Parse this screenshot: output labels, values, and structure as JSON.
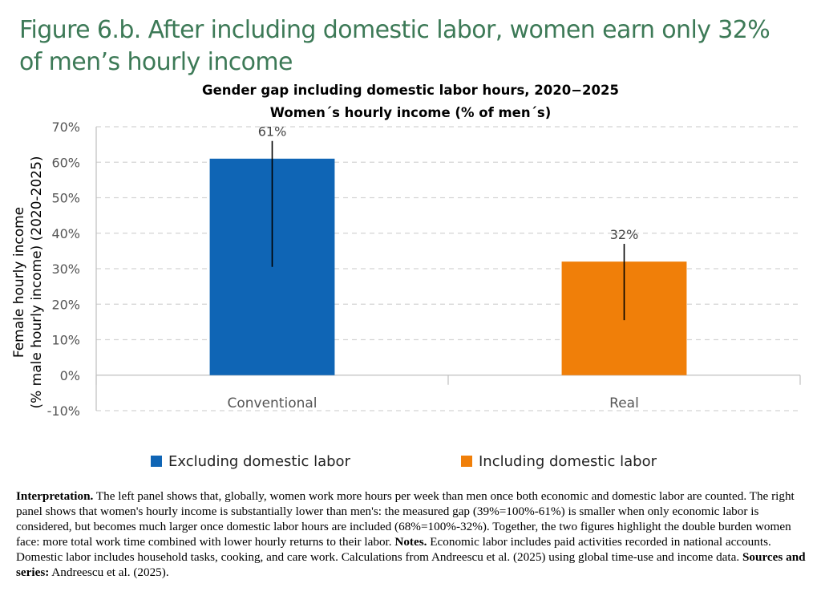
{
  "figure_title": "Figure 6.b. After including domestic labor, women earn only 32% of men’s hourly income",
  "chart_data": {
    "type": "bar",
    "title": "Gender gap including domestic labor hours, 2020−2025",
    "subtitle": "Women´s hourly income (% of men´s)",
    "ylabel_line1": "Female hourly income",
    "ylabel_line2": "(% male hourly income) (2020-2025)",
    "xlabel": "",
    "categories": [
      "Conventional",
      "Real"
    ],
    "series": [
      {
        "name": "Excluding domestic labor",
        "color": "#0f65b5",
        "values": [
          61,
          null
        ]
      },
      {
        "name": "Including domestic labor",
        "color": "#f07f09",
        "values": [
          null,
          32
        ]
      }
    ],
    "data_labels": [
      "61%",
      "32%"
    ],
    "error_bars": [
      {
        "category": "Conventional",
        "low": 30.5,
        "high": 66
      },
      {
        "category": "Real",
        "low": 15.5,
        "high": 37
      }
    ],
    "yticks": [
      70,
      60,
      50,
      40,
      30,
      20,
      10,
      0,
      -10
    ],
    "ytick_labels": [
      "70%",
      "60%",
      "50%",
      "40%",
      "30%",
      "20%",
      "10%",
      "0%",
      "-10%"
    ],
    "ylim": [
      -10,
      70
    ],
    "grid": true,
    "legend_position": "bottom"
  },
  "notes": {
    "interpretation_label": "Interpretation.",
    "interpretation_text": " The left panel shows that, globally, women work more hours per week than men once both economic and domestic labor are counted. The right panel shows that women's hourly income is substantially lower than men's: the measured gap (39%=100%-61%) is smaller when only economic labor is considered, but becomes much larger once domestic labor hours are included (68%=100%-32%). Together, the two figures highlight the double burden women face: more total work time combined with lower hourly returns to their labor. ",
    "notes_label": "Notes.",
    "notes_text": " Economic labor includes paid activities recorded in national accounts. Domestic labor includes household tasks, cooking, and care work. Calculations from Andreescu et al. (2025) using global time-use and income data. ",
    "sources_label": "Sources and series:",
    "sources_text": " Andreescu et al. (2025)."
  }
}
